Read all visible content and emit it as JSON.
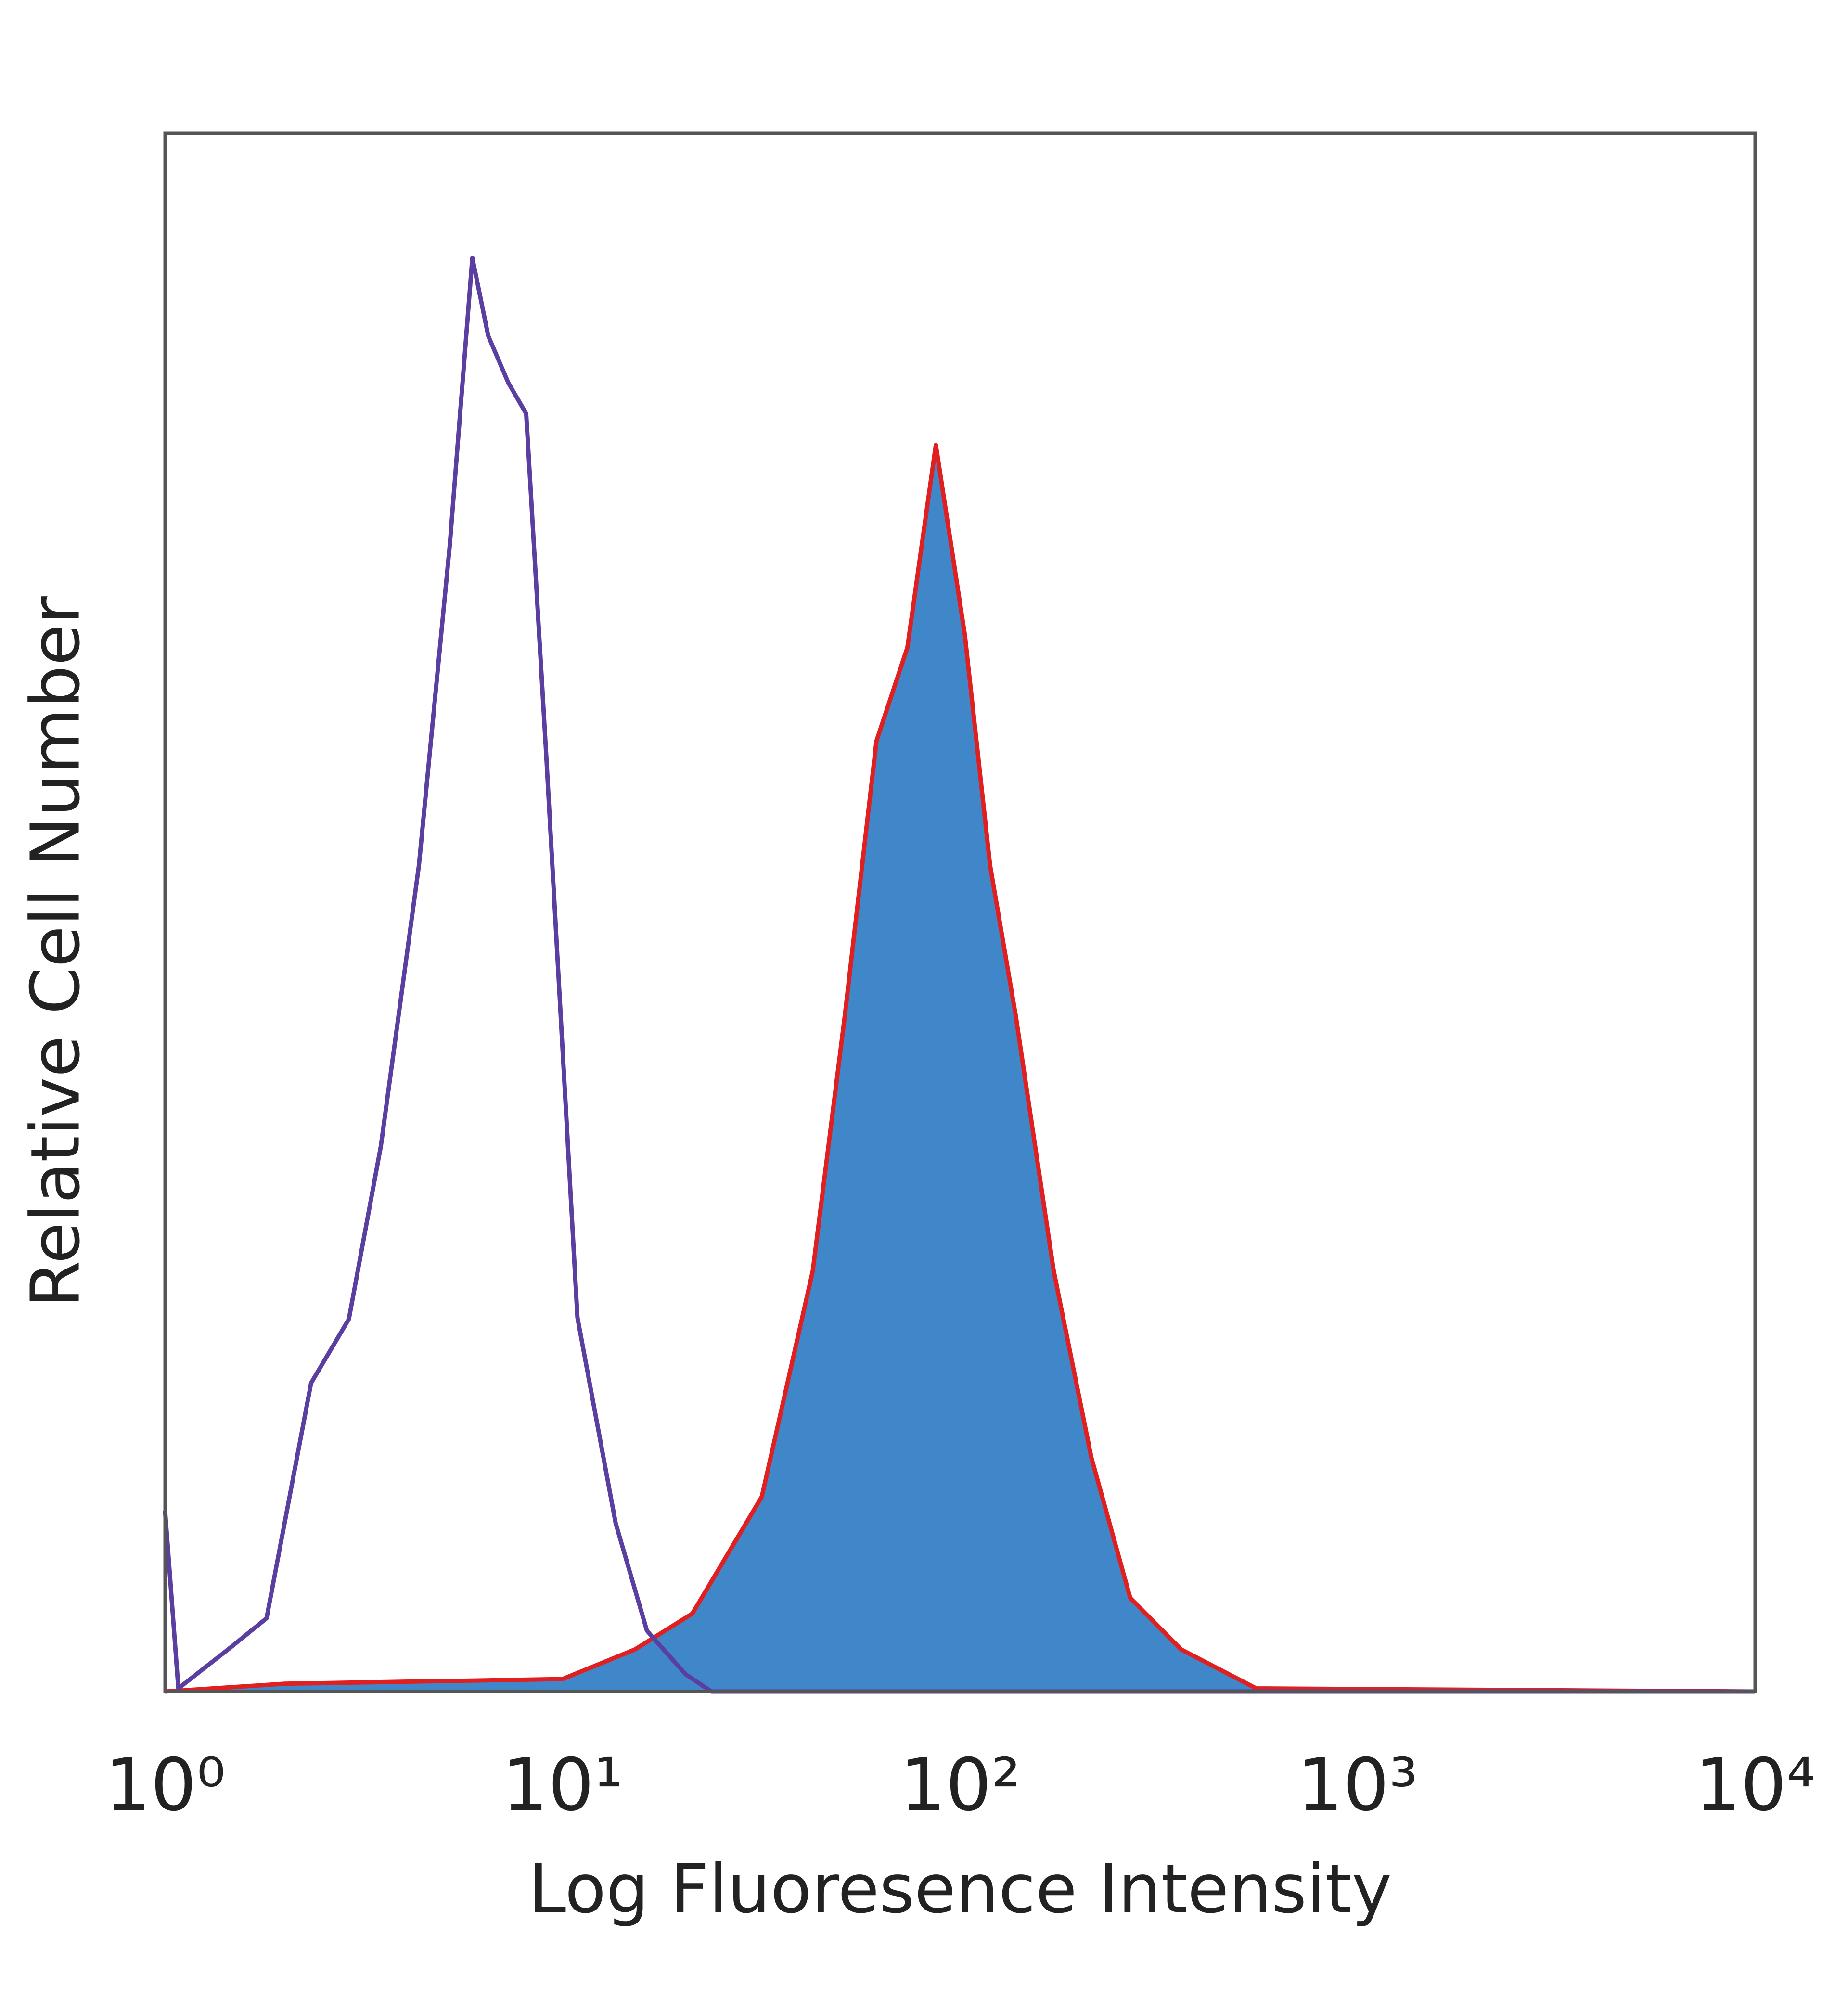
{
  "chart_data": {
    "type": "histogram-overlay",
    "xlabel": "Log Fluoresence Intensity",
    "ylabel": "Relative Cell Number",
    "xscale": "log",
    "xlim": [
      1,
      10000
    ],
    "xticks": [
      {
        "value": 1,
        "label": "10⁰"
      },
      {
        "value": 10,
        "label": "10¹"
      },
      {
        "value": 100,
        "label": "10²"
      },
      {
        "value": 1000,
        "label": "10³"
      },
      {
        "value": 10000,
        "label": "10⁴"
      }
    ],
    "ylim": [
      0,
      100
    ],
    "grid": false,
    "series": [
      {
        "color": "#e02020",
        "fill": "#3f87c8",
        "x": [
          1,
          2,
          10,
          15.2,
          21.2,
          31.7,
          42.6,
          51.3,
          61.6,
          73.7,
          86.9,
          102.8,
          119,
          138,
          172,
          214,
          268,
          360,
          556,
          10000
        ],
        "values": [
          0,
          0.5,
          0.8,
          2.7,
          5,
          12.5,
          27,
          43.4,
          61,
          67,
          80,
          67.8,
          53,
          43.4,
          27,
          15,
          6,
          2.7,
          0.2,
          0
        ]
      },
      {
        "color": "#5a3fa0",
        "x": [
          1,
          1.08,
          1.44,
          1.8,
          2.33,
          2.9,
          3.49,
          4.35,
          5.2,
          5.93,
          6.5,
          7.3,
          8.1,
          9.1,
          10.9,
          13.6,
          16.3,
          20.4,
          23.7,
          10000
        ],
        "values": [
          11.6,
          0.2,
          2.7,
          4.7,
          19.8,
          23.9,
          35,
          53,
          73.5,
          92,
          87,
          84,
          82,
          60,
          24,
          10.8,
          3.9,
          1.1,
          0,
          0
        ]
      }
    ]
  }
}
